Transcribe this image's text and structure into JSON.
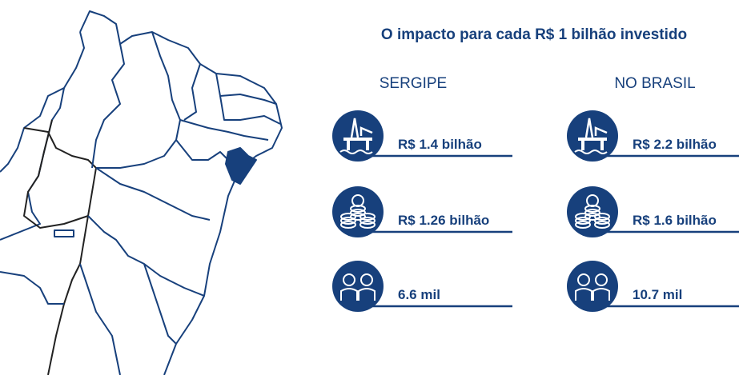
{
  "title": "O impacto para cada R$ 1 bilhão investido",
  "columns": [
    {
      "heading": "SERGIPE",
      "items": [
        "R$ 1.4 bilhão",
        "R$ 1.26 bilhão",
        "6.6 mil"
      ]
    },
    {
      "heading": "NO BRASIL",
      "items": [
        "R$ 2.2 bilhão",
        "R$ 1.6 bilhão",
        "10.7 mil"
      ]
    }
  ]
}
